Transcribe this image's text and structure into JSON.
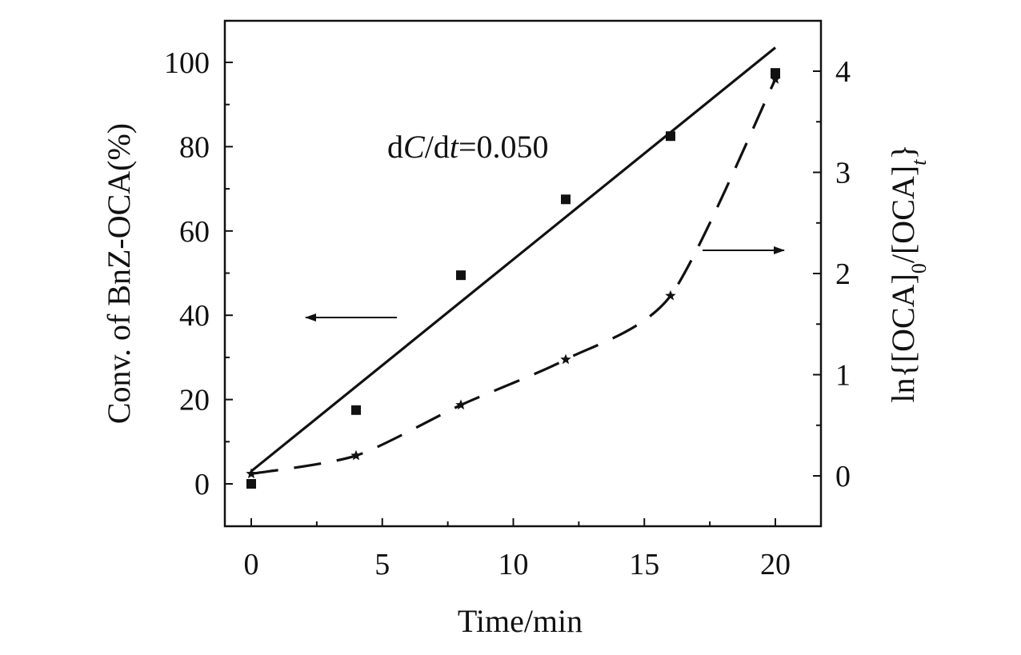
{
  "chart_data": {
    "type": "line",
    "xlabel": "Time/min",
    "ylabel": "Conv. of BnZ-OCA(%)",
    "y2label": {
      "prefix": "ln{[OCA]",
      "sub1": "0",
      "mid": "/[OCA]",
      "sub2": "t",
      "suffix": "}"
    },
    "annotation": {
      "d1": "d",
      "C": "C",
      "slash": "/d",
      "t": "t",
      "eq": "=0.050"
    },
    "xlim": [
      -1,
      22
    ],
    "ylim": [
      -10,
      110
    ],
    "y2lim": [
      -0.5,
      4.5
    ],
    "xticks": [
      0,
      5,
      10,
      15,
      20
    ],
    "yticks": [
      0,
      20,
      40,
      60,
      80,
      100
    ],
    "y2ticks": [
      0,
      1,
      2,
      3,
      4
    ],
    "grid": false,
    "series": [
      {
        "axis": "left",
        "marker": "square",
        "style": "markers",
        "x": [
          0,
          4,
          8,
          12,
          16,
          20
        ],
        "y": [
          0,
          17.5,
          49.5,
          67.5,
          82.5,
          97.5
        ]
      },
      {
        "axis": "left",
        "style": "solid-line",
        "x": [
          0,
          20
        ],
        "y": [
          3,
          103.5
        ]
      },
      {
        "axis": "right",
        "marker": "star",
        "style": "dashed-line",
        "x": [
          0,
          4,
          8,
          12,
          16,
          20
        ],
        "y": [
          0.02,
          0.2,
          0.7,
          1.15,
          1.78,
          3.92
        ]
      }
    ],
    "arrows": [
      {
        "direction": "left",
        "points_to": "left-axis"
      },
      {
        "direction": "right",
        "points_to": "right-axis"
      }
    ],
    "colors": {
      "ink": "#111111",
      "background": "#ffffff"
    }
  }
}
